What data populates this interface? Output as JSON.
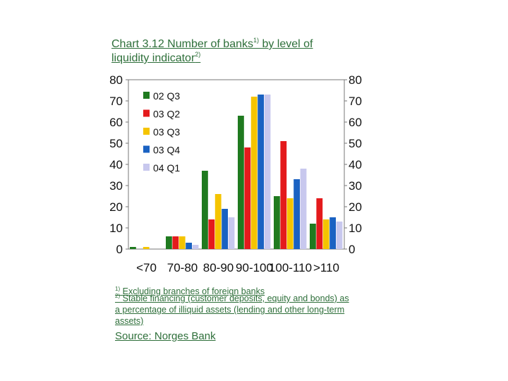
{
  "title": {
    "text": "Chart 3.12 Number of banks",
    "sup1": "1)",
    "text2": " by level of liquidity indicator",
    "sup2": "2)"
  },
  "footnotes": [
    {
      "sup": "1)",
      "text": "Excluding branches of foreign banks"
    },
    {
      "sup": "2)",
      "text": "Stable financing (customer deposits, equity and bonds) as a percentage of illiquid assets (lending and other long-term assets)"
    }
  ],
  "source": "Source: Norges Bank",
  "chart_data": {
    "type": "bar",
    "categories": [
      "<70",
      "70-80",
      "80-90",
      "90-100",
      "100-110",
      ">110"
    ],
    "series": [
      {
        "name": "02 Q3",
        "color": "#1f7a1f",
        "values": [
          1,
          6,
          37,
          63,
          25,
          12
        ]
      },
      {
        "name": "03 Q2",
        "color": "#e41a1c",
        "values": [
          0,
          6,
          14,
          48,
          51,
          24
        ]
      },
      {
        "name": "03 Q3",
        "color": "#f5c400",
        "values": [
          1,
          6,
          26,
          72,
          24,
          14
        ]
      },
      {
        "name": "03 Q4",
        "color": "#1a62c2",
        "values": [
          0,
          3,
          19,
          73,
          33,
          15
        ]
      },
      {
        "name": "04 Q1",
        "color": "#c8c8ee",
        "values": [
          0,
          2,
          15,
          73,
          38,
          13
        ]
      }
    ],
    "yticks": [
      "0",
      "10",
      "20",
      "30",
      "40",
      "50",
      "60",
      "70",
      "80"
    ],
    "ylim": [
      0,
      80
    ],
    "legend_position": "top-left",
    "grid": false
  }
}
